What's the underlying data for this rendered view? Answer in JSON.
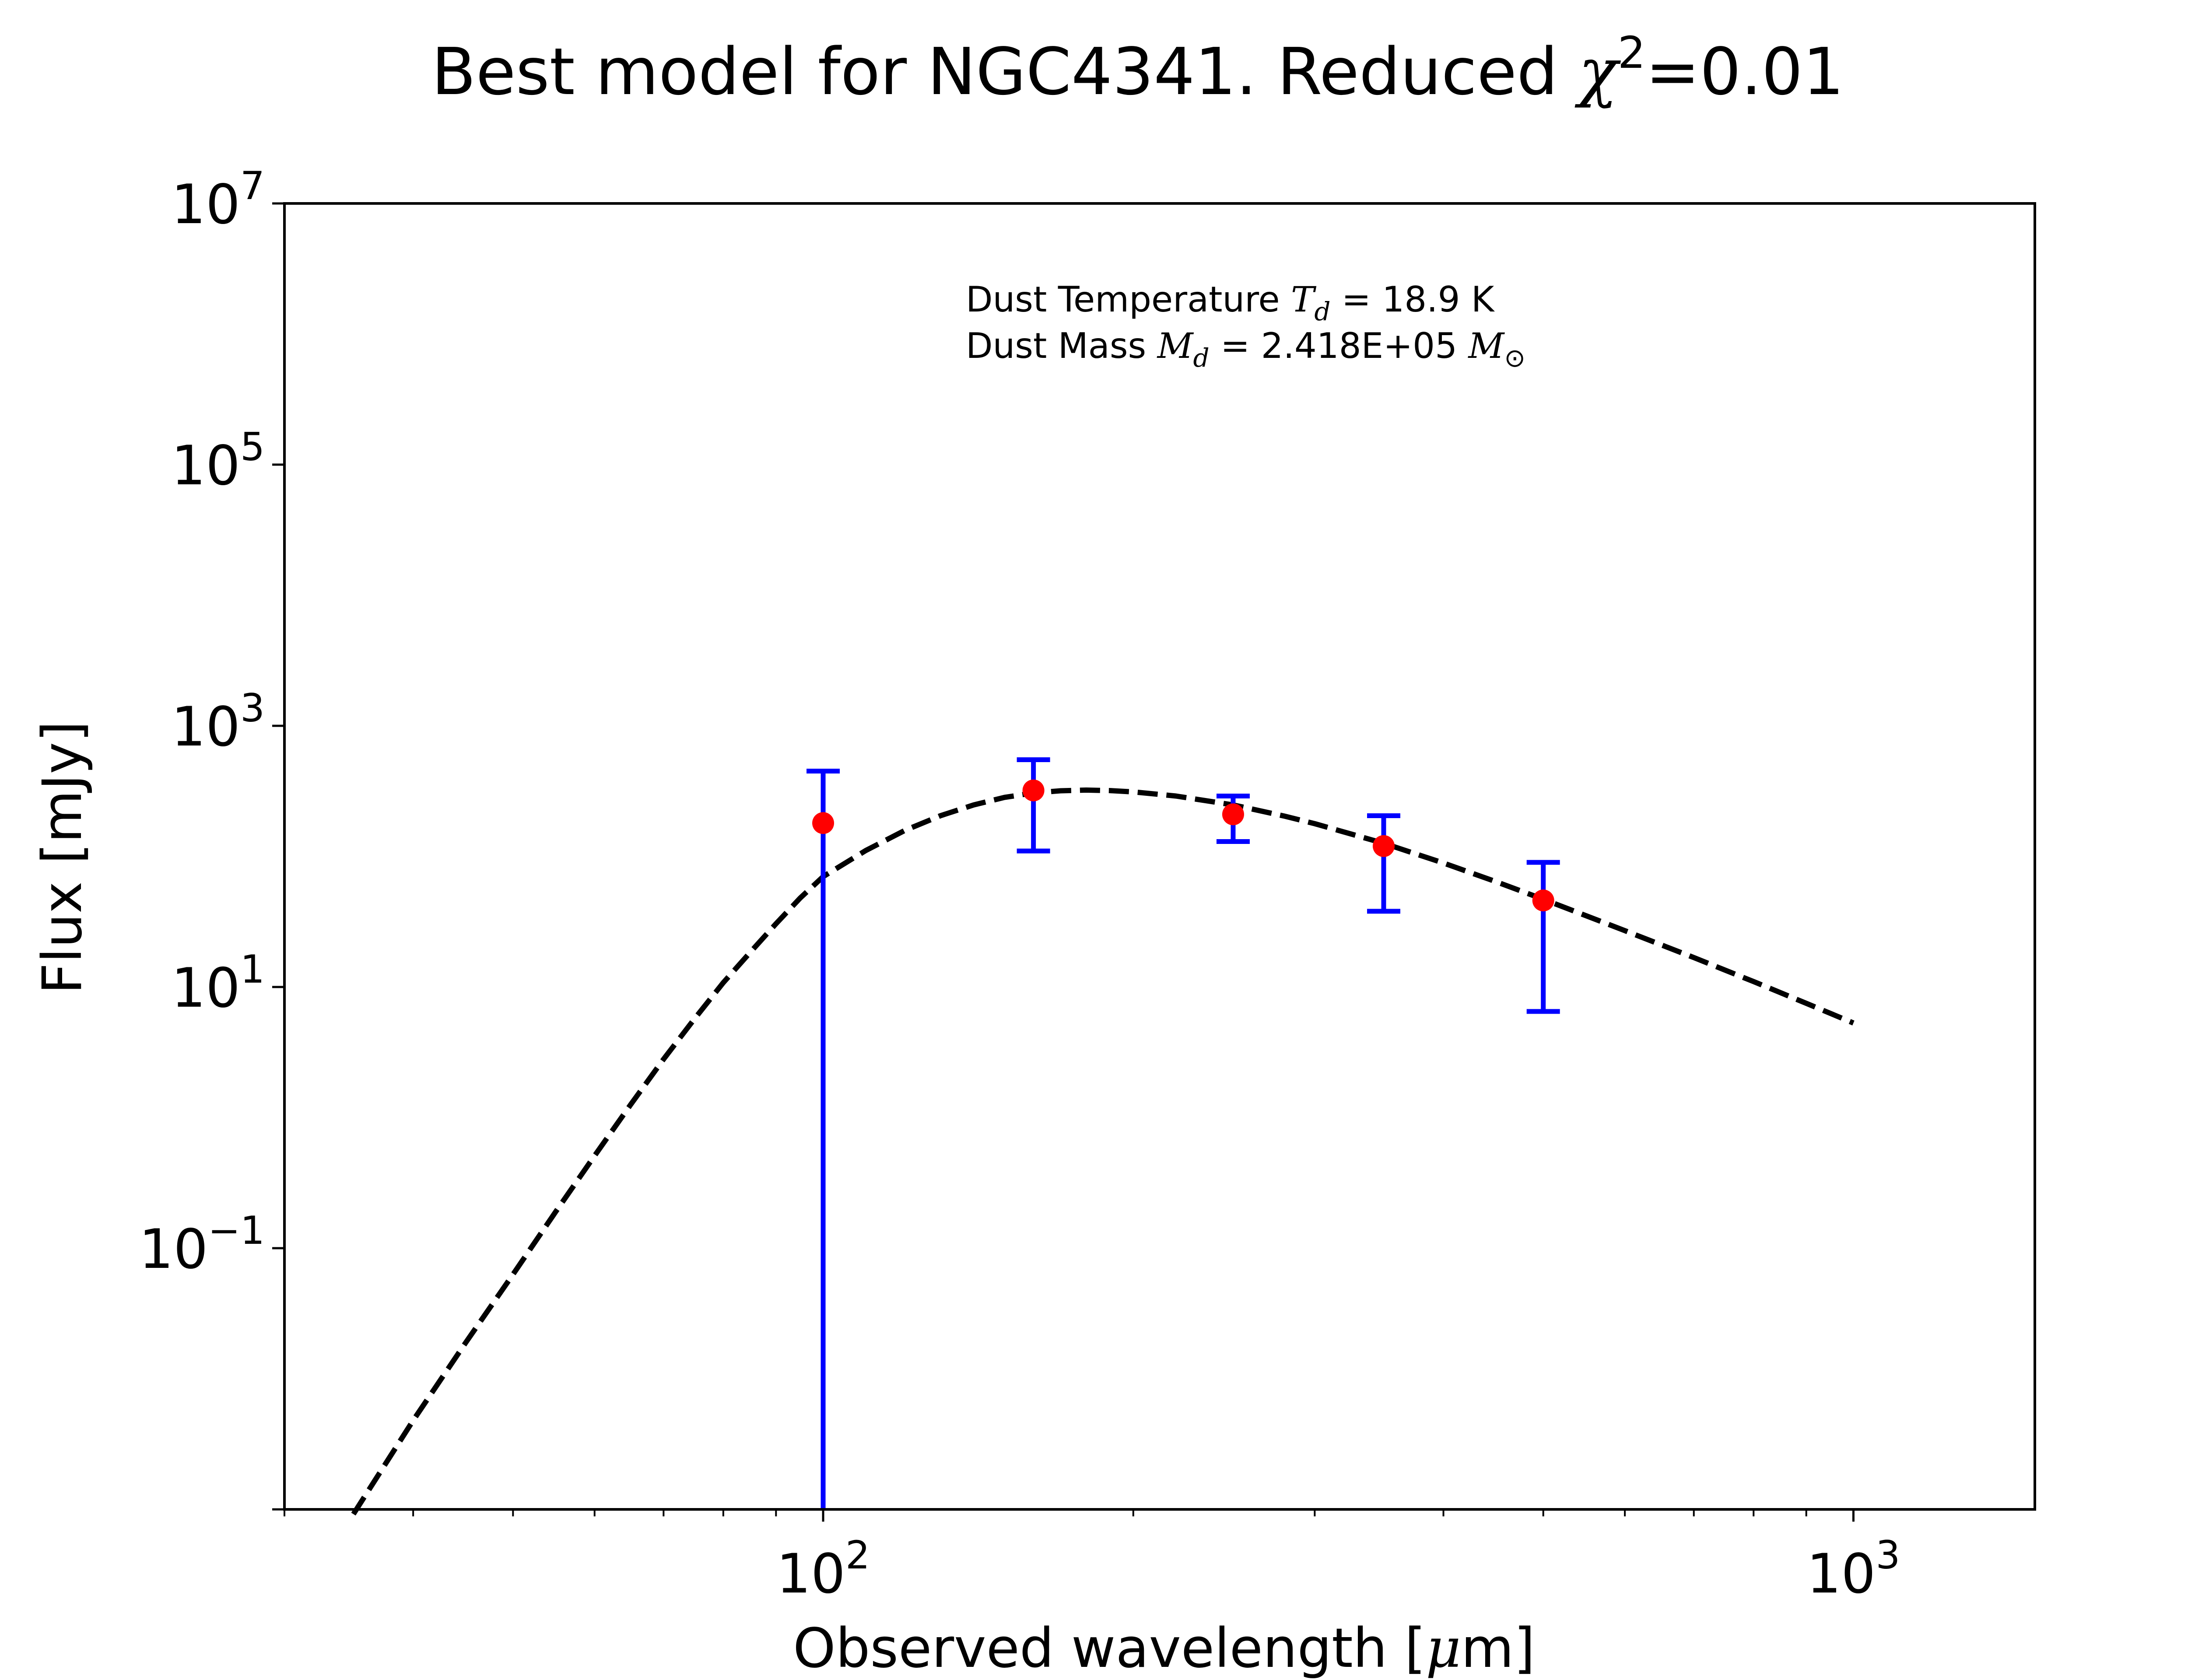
{
  "chart_data": {
    "type": "scatter",
    "title": {
      "prefix": "Best model for NGC4341. Reduced ",
      "chi_symbol": "χ",
      "chi_exponent": "2",
      "suffix": "=0.01"
    },
    "xlabel": {
      "prefix": "Observed wavelength [",
      "mu": "μ",
      "suffix": "m]"
    },
    "ylabel": "Flux [mJy]",
    "xscale": "log",
    "yscale": "log",
    "xlim": [
      30,
      1500
    ],
    "ylim": [
      0.001,
      10000000
    ],
    "grid": false,
    "x_ticks": [
      {
        "value": 100,
        "base": "10",
        "exp": "2"
      },
      {
        "value": 1000,
        "base": "10",
        "exp": "3"
      }
    ],
    "y_ticks": [
      {
        "value": 0.1,
        "base": "10",
        "exp": "−1"
      },
      {
        "value": 10,
        "base": "10",
        "exp": "1"
      },
      {
        "value": 1000,
        "base": "10",
        "exp": "3"
      },
      {
        "value": 100000,
        "base": "10",
        "exp": "5"
      },
      {
        "value": 10000000,
        "base": "10",
        "exp": "7"
      }
    ],
    "annotations": {
      "line1": {
        "prefix": "Dust Temperature ",
        "sym": "T",
        "sub": "d",
        "suffix": " = 18.9 K"
      },
      "line2": {
        "prefix": "Dust Mass ",
        "sym": "M",
        "sub": "d",
        "suffix": " = 2.418E+05 ",
        "unit_sym": "M",
        "unit_sub": "⊙"
      }
    },
    "observations": {
      "name": "observed",
      "color": "#ff0000",
      "errorbar_color": "#0000ff",
      "points": [
        {
          "x": 100,
          "y": 180,
          "yerr_low": 0.001,
          "yerr_high": 450
        },
        {
          "x": 160,
          "y": 320,
          "yerr_low": 110,
          "yerr_high": 550
        },
        {
          "x": 250,
          "y": 210,
          "yerr_low": 130,
          "yerr_high": 290
        },
        {
          "x": 350,
          "y": 120,
          "yerr_low": 38,
          "yerr_high": 205
        },
        {
          "x": 500,
          "y": 46,
          "yerr_low": 6.5,
          "yerr_high": 90
        }
      ]
    },
    "model": {
      "name": "best model",
      "style": "dashed",
      "color": "#000000",
      "x": [
        35,
        40,
        45,
        50,
        55,
        60,
        65,
        70,
        75,
        80,
        85,
        90,
        95,
        100,
        110,
        120,
        130,
        140,
        150,
        160,
        170,
        180,
        190,
        200,
        220,
        250,
        280,
        300,
        350,
        400,
        450,
        500,
        600,
        700,
        800,
        900,
        1000
      ],
      "y": [
        0.00092,
        0.0048,
        0.019,
        0.063,
        0.19,
        0.51,
        1.25,
        2.8,
        5.7,
        10.8,
        18.5,
        30.5,
        48,
        70,
        111,
        158,
        205,
        248,
        283,
        306,
        318,
        322,
        319,
        312,
        290,
        248,
        204,
        178,
        126,
        89,
        64,
        47,
        27,
        16.8,
        11,
        7.5,
        5.3
      ]
    }
  }
}
